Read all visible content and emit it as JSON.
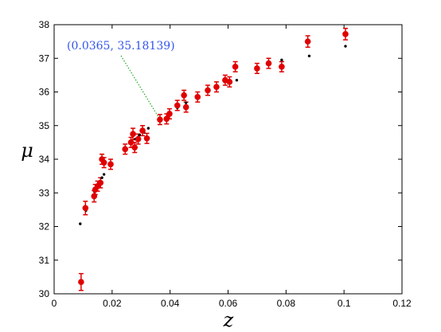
{
  "chart_data": {
    "type": "scatter",
    "xlabel": "z",
    "ylabel": "μ",
    "xlim": [
      0,
      0.12
    ],
    "ylim": [
      30,
      38
    ],
    "x_ticks": [
      0,
      0.02,
      0.04,
      0.06,
      0.08,
      0.1,
      0.12
    ],
    "x_tick_labels": [
      "0",
      "0.02",
      "0.04",
      "0.06",
      "0.08",
      "0.1",
      "0.12"
    ],
    "y_ticks": [
      30,
      31,
      32,
      33,
      34,
      35,
      36,
      37,
      38
    ],
    "y_tick_labels": [
      "30",
      "31",
      "32",
      "33",
      "34",
      "35",
      "36",
      "37",
      "38"
    ],
    "grid": false,
    "colors": {
      "observed": "#e00000",
      "model": "#000000",
      "annotation": "#3355ee",
      "leader": "#22aa22"
    },
    "annotation": {
      "text": "(0.0365, 35.18139)",
      "point": [
        0.0365,
        35.18139
      ]
    },
    "series": [
      {
        "marker": "red-circle-errorbar",
        "points": [
          {
            "x": 0.0093,
            "y": 30.35,
            "err": 0.25
          },
          {
            "x": 0.0108,
            "y": 32.55,
            "err": 0.2
          },
          {
            "x": 0.0138,
            "y": 32.9,
            "err": 0.17
          },
          {
            "x": 0.0142,
            "y": 33.1,
            "err": 0.15
          },
          {
            "x": 0.015,
            "y": 33.2,
            "err": 0.15
          },
          {
            "x": 0.016,
            "y": 33.3,
            "err": 0.15
          },
          {
            "x": 0.0165,
            "y": 34.0,
            "err": 0.15
          },
          {
            "x": 0.0172,
            "y": 33.9,
            "err": 0.15
          },
          {
            "x": 0.0195,
            "y": 33.85,
            "err": 0.15
          },
          {
            "x": 0.0245,
            "y": 34.3,
            "err": 0.15
          },
          {
            "x": 0.0265,
            "y": 34.5,
            "err": 0.15
          },
          {
            "x": 0.0272,
            "y": 34.75,
            "err": 0.17
          },
          {
            "x": 0.0278,
            "y": 34.35,
            "err": 0.15
          },
          {
            "x": 0.029,
            "y": 34.6,
            "err": 0.15
          },
          {
            "x": 0.0305,
            "y": 34.85,
            "err": 0.15
          },
          {
            "x": 0.032,
            "y": 34.62,
            "err": 0.15
          },
          {
            "x": 0.0365,
            "y": 35.18,
            "err": 0.15
          },
          {
            "x": 0.0388,
            "y": 35.2,
            "err": 0.15
          },
          {
            "x": 0.0398,
            "y": 35.35,
            "err": 0.15
          },
          {
            "x": 0.0425,
            "y": 35.6,
            "err": 0.15
          },
          {
            "x": 0.0448,
            "y": 35.9,
            "err": 0.15
          },
          {
            "x": 0.0455,
            "y": 35.55,
            "err": 0.15
          },
          {
            "x": 0.0495,
            "y": 35.85,
            "err": 0.15
          },
          {
            "x": 0.053,
            "y": 36.05,
            "err": 0.15
          },
          {
            "x": 0.056,
            "y": 36.15,
            "err": 0.15
          },
          {
            "x": 0.059,
            "y": 36.35,
            "err": 0.15
          },
          {
            "x": 0.0605,
            "y": 36.3,
            "err": 0.15
          },
          {
            "x": 0.0625,
            "y": 36.75,
            "err": 0.15
          },
          {
            "x": 0.07,
            "y": 36.7,
            "err": 0.15
          },
          {
            "x": 0.074,
            "y": 36.85,
            "err": 0.15
          },
          {
            "x": 0.0785,
            "y": 36.75,
            "err": 0.15
          },
          {
            "x": 0.0875,
            "y": 37.5,
            "err": 0.17
          },
          {
            "x": 0.1005,
            "y": 37.72,
            "err": 0.17
          }
        ]
      },
      {
        "marker": "black-dot",
        "points": [
          {
            "x": 0.009,
            "y": 32.08
          },
          {
            "x": 0.011,
            "y": 32.48
          },
          {
            "x": 0.0138,
            "y": 33.05
          },
          {
            "x": 0.0145,
            "y": 33.15
          },
          {
            "x": 0.0155,
            "y": 33.32
          },
          {
            "x": 0.0165,
            "y": 33.45
          },
          {
            "x": 0.0172,
            "y": 33.55
          },
          {
            "x": 0.0195,
            "y": 33.85
          },
          {
            "x": 0.0245,
            "y": 34.3
          },
          {
            "x": 0.0265,
            "y": 34.5
          },
          {
            "x": 0.028,
            "y": 34.6
          },
          {
            "x": 0.0295,
            "y": 34.72
          },
          {
            "x": 0.031,
            "y": 34.8
          },
          {
            "x": 0.0325,
            "y": 34.92
          },
          {
            "x": 0.0365,
            "y": 35.18
          },
          {
            "x": 0.0395,
            "y": 35.36
          },
          {
            "x": 0.0425,
            "y": 35.53
          },
          {
            "x": 0.0455,
            "y": 35.68
          },
          {
            "x": 0.0495,
            "y": 35.88
          },
          {
            "x": 0.053,
            "y": 36.05
          },
          {
            "x": 0.056,
            "y": 36.17
          },
          {
            "x": 0.059,
            "y": 36.3
          },
          {
            "x": 0.063,
            "y": 36.35
          },
          {
            "x": 0.07,
            "y": 36.72
          },
          {
            "x": 0.074,
            "y": 36.85
          },
          {
            "x": 0.0785,
            "y": 36.95
          },
          {
            "x": 0.088,
            "y": 37.07
          },
          {
            "x": 0.1005,
            "y": 37.36
          }
        ]
      }
    ]
  }
}
